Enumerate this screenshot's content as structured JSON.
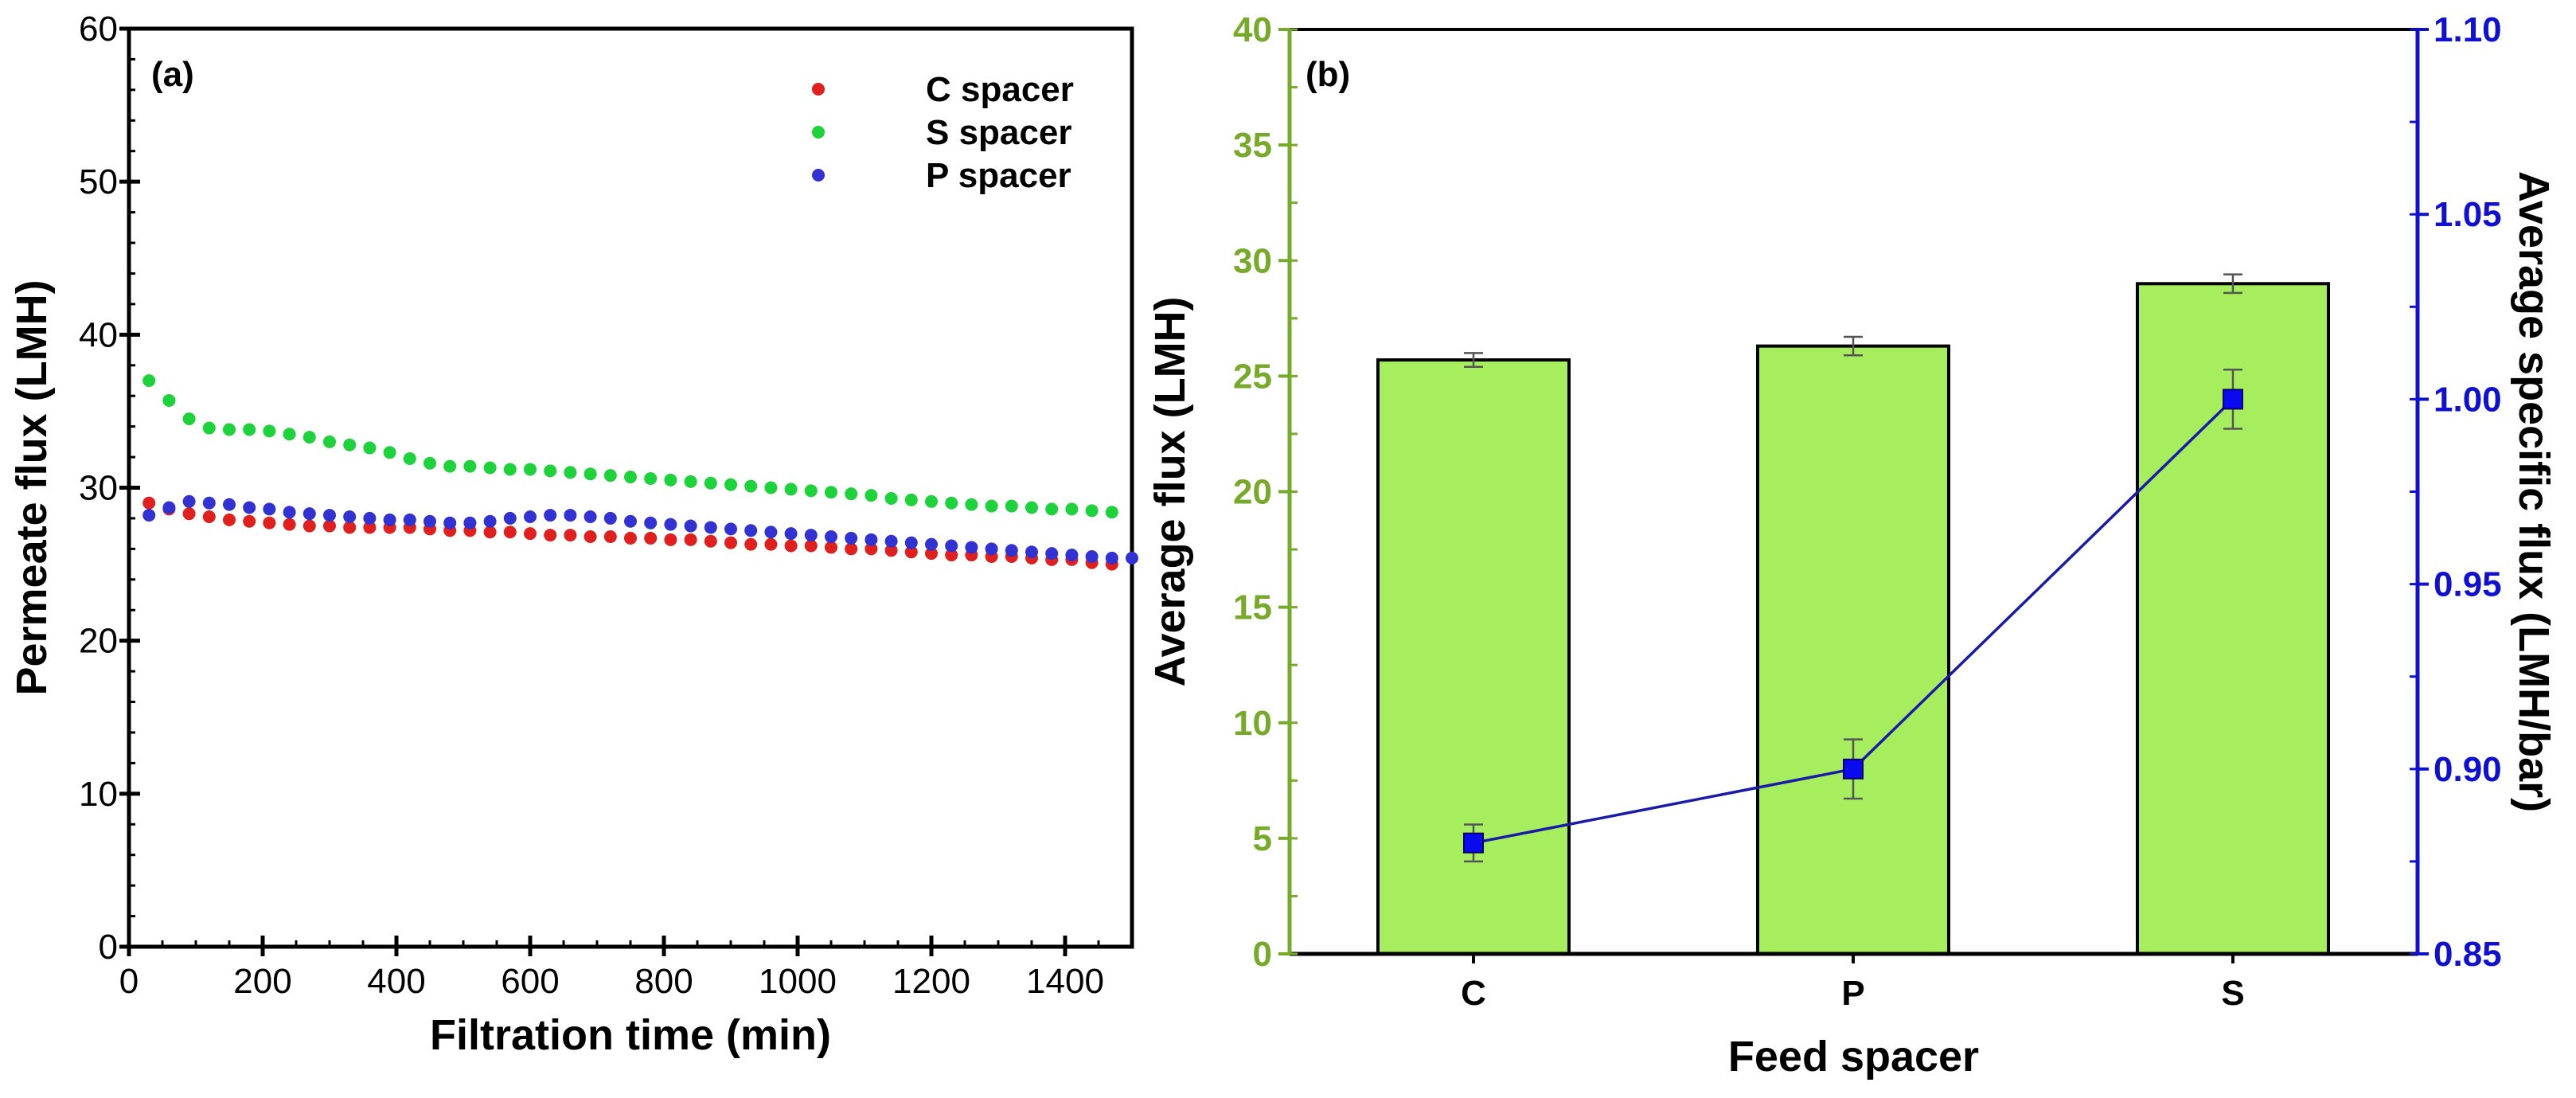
{
  "chart_data": [
    {
      "type": "scatter",
      "panel_label": "(a)",
      "xlabel": "Filtration time (min)",
      "ylabel": "Permeate flux (LMH)",
      "xlim": [
        0,
        1500
      ],
      "ylim": [
        0,
        60
      ],
      "xticks": [
        0,
        200,
        400,
        600,
        800,
        1000,
        1200,
        1400
      ],
      "yticks": [
        0,
        10,
        20,
        30,
        40,
        50,
        60
      ],
      "grid": false,
      "legend_position": "top-right",
      "series": [
        {
          "name": "C spacer",
          "color": "#e0201e",
          "x": [
            30,
            60,
            90,
            120,
            150,
            180,
            210,
            240,
            270,
            300,
            330,
            360,
            390,
            420,
            450,
            480,
            510,
            540,
            570,
            600,
            630,
            660,
            690,
            720,
            750,
            780,
            810,
            840,
            870,
            900,
            930,
            960,
            990,
            1020,
            1050,
            1080,
            1110,
            1140,
            1170,
            1200,
            1230,
            1260,
            1290,
            1320,
            1350,
            1380,
            1410,
            1440,
            1470
          ],
          "y": [
            29.0,
            28.6,
            28.3,
            28.1,
            27.9,
            27.8,
            27.7,
            27.6,
            27.5,
            27.5,
            27.4,
            27.4,
            27.4,
            27.4,
            27.3,
            27.2,
            27.2,
            27.1,
            27.1,
            27.0,
            26.9,
            26.9,
            26.8,
            26.8,
            26.7,
            26.7,
            26.6,
            26.6,
            26.5,
            26.4,
            26.3,
            26.3,
            26.2,
            26.2,
            26.1,
            26.0,
            26.0,
            25.9,
            25.8,
            25.7,
            25.6,
            25.6,
            25.5,
            25.5,
            25.4,
            25.3,
            25.3,
            25.1,
            25.0
          ]
        },
        {
          "name": "S spacer",
          "color": "#1ed23c",
          "x": [
            30,
            60,
            90,
            120,
            150,
            180,
            210,
            240,
            270,
            300,
            330,
            360,
            390,
            420,
            450,
            480,
            510,
            540,
            570,
            600,
            630,
            660,
            690,
            720,
            750,
            780,
            810,
            840,
            870,
            900,
            930,
            960,
            990,
            1020,
            1050,
            1080,
            1110,
            1140,
            1170,
            1200,
            1230,
            1260,
            1290,
            1320,
            1350,
            1380,
            1410,
            1440,
            1470
          ],
          "y": [
            37.0,
            35.7,
            34.5,
            33.9,
            33.8,
            33.8,
            33.7,
            33.5,
            33.3,
            33.0,
            32.8,
            32.6,
            32.3,
            31.9,
            31.6,
            31.4,
            31.4,
            31.3,
            31.2,
            31.2,
            31.1,
            31.0,
            30.9,
            30.8,
            30.7,
            30.6,
            30.5,
            30.4,
            30.3,
            30.2,
            30.1,
            30.0,
            29.9,
            29.8,
            29.7,
            29.6,
            29.5,
            29.3,
            29.2,
            29.1,
            29.0,
            28.9,
            28.8,
            28.8,
            28.7,
            28.6,
            28.6,
            28.5,
            28.4
          ]
        },
        {
          "name": "P spacer",
          "color": "#3232d2",
          "x": [
            30,
            60,
            90,
            120,
            150,
            180,
            210,
            240,
            270,
            300,
            330,
            360,
            390,
            420,
            450,
            480,
            510,
            540,
            570,
            600,
            630,
            660,
            690,
            720,
            750,
            780,
            810,
            840,
            870,
            900,
            930,
            960,
            990,
            1020,
            1050,
            1080,
            1110,
            1140,
            1170,
            1200,
            1230,
            1260,
            1290,
            1320,
            1350,
            1380,
            1410,
            1440,
            1470,
            1500
          ],
          "y": [
            28.2,
            28.7,
            29.1,
            29.0,
            28.9,
            28.7,
            28.6,
            28.4,
            28.3,
            28.2,
            28.1,
            28.0,
            27.9,
            27.9,
            27.8,
            27.7,
            27.7,
            27.8,
            28.0,
            28.1,
            28.2,
            28.2,
            28.1,
            28.0,
            27.8,
            27.7,
            27.6,
            27.5,
            27.4,
            27.3,
            27.2,
            27.1,
            27.0,
            26.9,
            26.8,
            26.7,
            26.6,
            26.5,
            26.4,
            26.3,
            26.2,
            26.1,
            26.0,
            25.9,
            25.8,
            25.7,
            25.6,
            25.5,
            25.4,
            25.4
          ]
        }
      ]
    },
    {
      "type": "bar",
      "panel_label": "(b)",
      "xlabel": "Feed spacer",
      "ylabel": "Average flux (LMH)",
      "y2label": "Average specific flux (LMH/bar)",
      "categories": [
        "C",
        "P",
        "S"
      ],
      "ylim": [
        0,
        40
      ],
      "yticks": [
        0,
        5,
        10,
        15,
        20,
        25,
        30,
        35,
        40
      ],
      "y2lim": [
        0.85,
        1.1
      ],
      "y2ticks": [
        "0.85",
        "0.90",
        "0.95",
        "1.00",
        "1.05",
        "1.10"
      ],
      "grid": false,
      "colors": {
        "bar": "#a6ee5e",
        "left_axis": "#77aa2a",
        "right_axis": "#1010d0",
        "line": "#1a1aa8"
      },
      "series": [
        {
          "name": "Average flux",
          "axis": "left",
          "kind": "bar",
          "values": [
            25.7,
            26.3,
            29.0
          ],
          "errors": [
            0.3,
            0.4,
            0.4
          ]
        },
        {
          "name": "Average specific flux",
          "axis": "right",
          "kind": "line",
          "values": [
            0.88,
            0.9,
            1.0
          ],
          "errors": [
            0.005,
            0.008,
            0.008
          ]
        }
      ]
    }
  ]
}
